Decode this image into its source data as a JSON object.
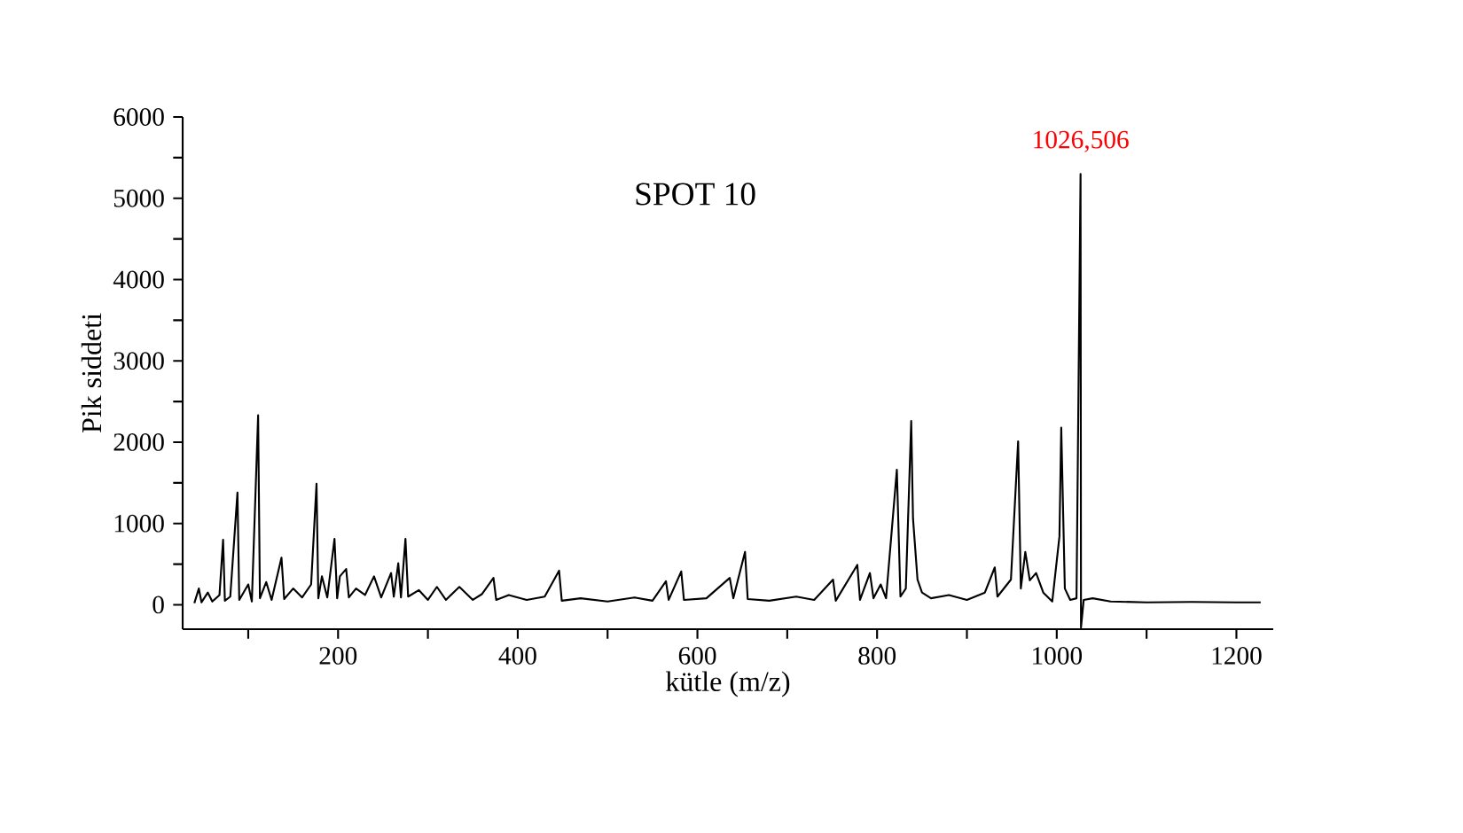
{
  "chart_data": {
    "type": "line",
    "title": "SPOT 10",
    "xlabel": "kütle (m/z)",
    "ylabel": "Pik siddeti",
    "xlim": [
      27,
      1241
    ],
    "ylim": [
      -300,
      6000
    ],
    "xticks": [
      {
        "value": 100,
        "label": null
      },
      200,
      {
        "value": 300,
        "label": null
      },
      400,
      {
        "value": 500,
        "label": null
      },
      600,
      {
        "value": 700,
        "label": null
      },
      800,
      {
        "value": 900,
        "label": null
      },
      1000,
      {
        "value": 1100,
        "label": null
      },
      1200
    ],
    "yticks": [
      0,
      {
        "value": 500,
        "label": null
      },
      1000,
      {
        "value": 1500,
        "label": null
      },
      2000,
      {
        "value": 2500,
        "label": null
      },
      3000,
      {
        "value": 3500,
        "label": null
      },
      4000,
      {
        "value": 4500,
        "label": null
      },
      5000,
      {
        "value": 5500,
        "label": null
      },
      6000
    ],
    "grid": false,
    "marker": "none",
    "line_style": "solid",
    "annotations": [
      {
        "text": "1026,506",
        "x": 1026.506,
        "y": 5300
      }
    ],
    "series": [
      {
        "color": "#000000",
        "x": [
          40,
          45,
          48,
          55,
          60,
          68,
          72,
          74,
          80,
          88,
          90,
          100,
          104,
          111,
          113,
          120,
          126,
          137,
          140,
          150,
          160,
          170,
          176,
          178,
          182,
          188,
          196,
          199,
          202,
          209,
          212,
          220,
          230,
          240,
          248,
          259,
          262,
          267,
          270,
          275,
          278,
          290,
          300,
          310,
          320,
          335,
          350,
          360,
          373,
          376,
          390,
          410,
          430,
          446,
          449,
          470,
          500,
          530,
          550,
          565,
          568,
          582,
          585,
          610,
          636,
          640,
          653,
          656,
          680,
          710,
          730,
          751,
          754,
          778,
          781,
          792,
          796,
          804,
          810,
          822,
          826,
          832,
          838,
          840,
          845,
          850,
          860,
          880,
          900,
          920,
          931,
          934,
          949,
          957,
          960,
          965,
          970,
          977,
          985,
          995,
          1003,
          1005,
          1009,
          1015,
          1022,
          1026.506,
          1027,
          1030,
          1040,
          1060,
          1100,
          1150,
          1200,
          1227
        ],
        "values": [
          20,
          200,
          30,
          150,
          40,
          120,
          800,
          50,
          100,
          1380,
          60,
          250,
          40,
          2330,
          80,
          280,
          60,
          580,
          70,
          200,
          90,
          250,
          1490,
          80,
          350,
          90,
          810,
          80,
          350,
          440,
          90,
          200,
          120,
          350,
          90,
          390,
          100,
          510,
          90,
          810,
          100,
          180,
          60,
          220,
          60,
          220,
          60,
          130,
          330,
          60,
          120,
          60,
          100,
          420,
          50,
          80,
          40,
          90,
          50,
          290,
          60,
          410,
          60,
          80,
          330,
          80,
          650,
          70,
          50,
          100,
          60,
          310,
          50,
          490,
          60,
          390,
          80,
          250,
          80,
          1660,
          100,
          200,
          2260,
          1060,
          310,
          150,
          80,
          120,
          60,
          150,
          460,
          100,
          310,
          2010,
          200,
          650,
          300,
          390,
          150,
          40,
          840,
          2180,
          200,
          60,
          80,
          5300,
          -280,
          60,
          80,
          40,
          30,
          35,
          30,
          30
        ]
      }
    ]
  }
}
